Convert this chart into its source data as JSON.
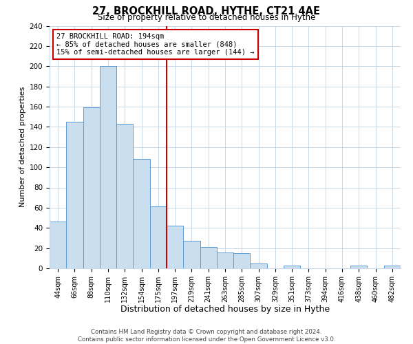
{
  "title": "27, BROCKHILL ROAD, HYTHE, CT21 4AE",
  "subtitle": "Size of property relative to detached houses in Hythe",
  "xlabel": "Distribution of detached houses by size in Hythe",
  "ylabel": "Number of detached properties",
  "bar_labels": [
    "44sqm",
    "66sqm",
    "88sqm",
    "110sqm",
    "132sqm",
    "154sqm",
    "175sqm",
    "197sqm",
    "219sqm",
    "241sqm",
    "263sqm",
    "285sqm",
    "307sqm",
    "329sqm",
    "351sqm",
    "373sqm",
    "394sqm",
    "416sqm",
    "438sqm",
    "460sqm",
    "482sqm"
  ],
  "bar_values": [
    46,
    145,
    159,
    200,
    143,
    108,
    61,
    42,
    27,
    21,
    16,
    15,
    5,
    0,
    3,
    0,
    0,
    0,
    3,
    0,
    3
  ],
  "bar_color": "#c9dff0",
  "bar_edge_color": "#5b9bd5",
  "vline_color": "#cc0000",
  "annotation_line1": "27 BROCKHILL ROAD: 194sqm",
  "annotation_line2": "← 85% of detached houses are smaller (848)",
  "annotation_line3": "15% of semi-detached houses are larger (144) →",
  "annotation_box_edge": "#cc0000",
  "annotation_box_face": "#ffffff",
  "footer_line1": "Contains HM Land Registry data © Crown copyright and database right 2024.",
  "footer_line2": "Contains public sector information licensed under the Open Government Licence v3.0.",
  "ylim": [
    0,
    240
  ],
  "background_color": "#ffffff",
  "grid_color": "#c8d8e8",
  "title_fontsize": 10.5,
  "subtitle_fontsize": 8.5,
  "ylabel_fontsize": 8,
  "xlabel_fontsize": 9
}
